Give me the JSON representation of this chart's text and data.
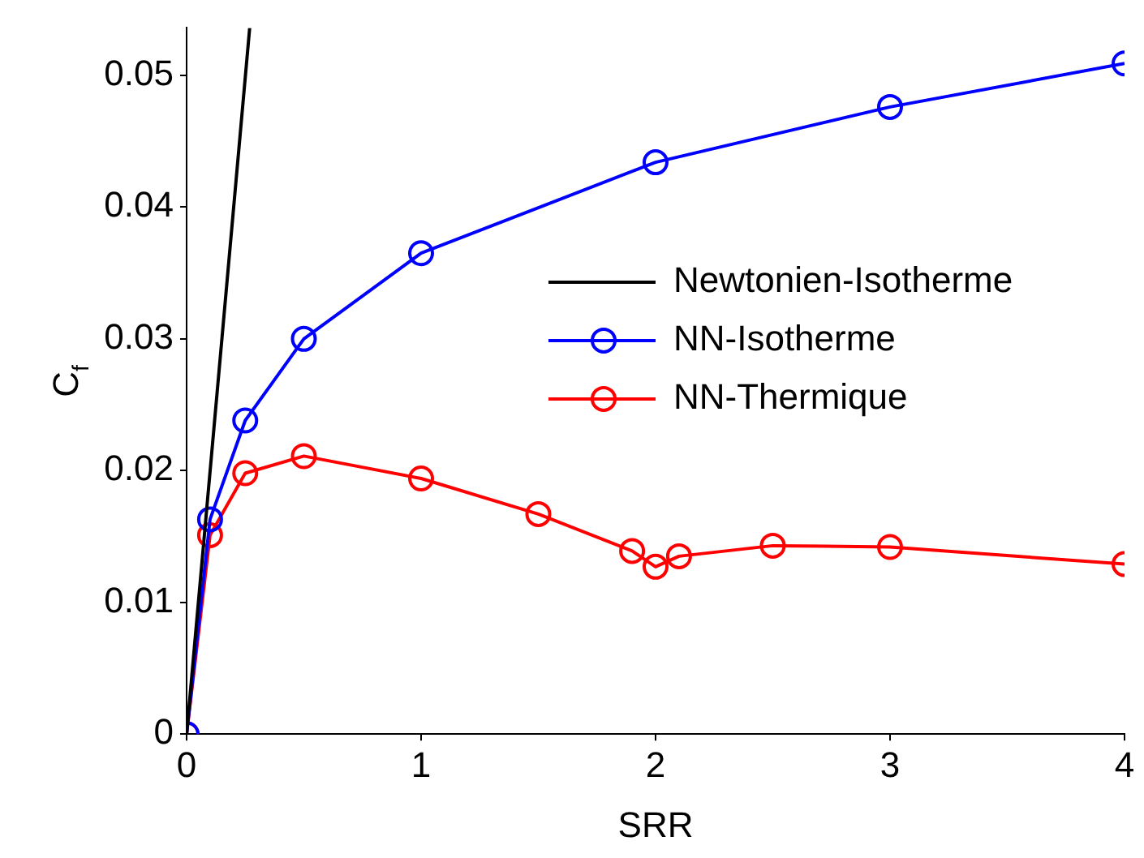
{
  "chart_data": {
    "type": "line",
    "xlabel": "SRR",
    "ylabel": "C$_{f}$",
    "xlim": [
      0,
      4
    ],
    "xticks": [
      0,
      1,
      2,
      3,
      4
    ],
    "ylim": [
      0,
      0.0536
    ],
    "yticks": [
      0,
      0.01,
      0.02,
      0.03,
      0.04,
      0.05
    ],
    "grid": false,
    "legend": "right",
    "marker": "circle",
    "line_style": "solid",
    "series": [
      {
        "name": "Newtonien-Isotherme",
        "color": "#000000",
        "marker": "none",
        "x": [
          0,
          0.269
        ],
        "values": [
          0,
          0.0536
        ]
      },
      {
        "name": "NN-Isotherme",
        "color": "#0000ff",
        "x": [
          0,
          0.1,
          0.25,
          0.5,
          1,
          2,
          3,
          4
        ],
        "values": [
          0,
          0.0163,
          0.0238,
          0.03,
          0.0365,
          0.0434,
          0.0476,
          0.0509
        ]
      },
      {
        "name": "NN-Thermique",
        "color": "#ff0000",
        "x": [
          0,
          0.1,
          0.25,
          0.5,
          1,
          1.5,
          1.9,
          2,
          2.1,
          2.5,
          3,
          4
        ],
        "values": [
          0,
          0.0151,
          0.0198,
          0.0211,
          0.0194,
          0.0167,
          0.0139,
          0.0127,
          0.0135,
          0.0143,
          0.0142,
          0.0129
        ]
      }
    ]
  }
}
